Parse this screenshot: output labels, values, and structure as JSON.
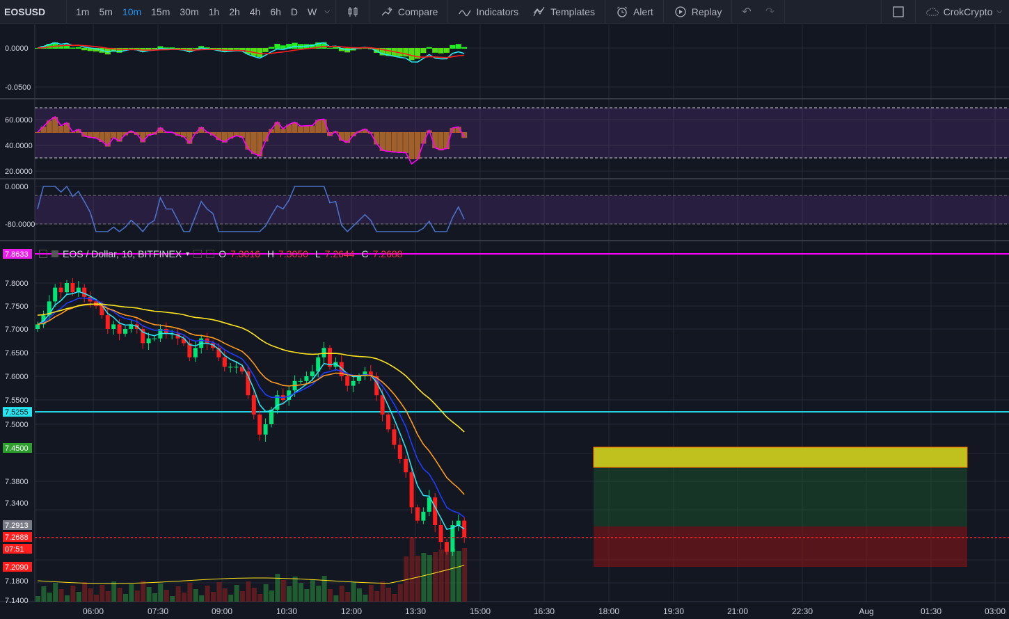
{
  "toolbar": {
    "symbol": "EOSUSD",
    "timeframes": [
      "1m",
      "5m",
      "10m",
      "15m",
      "30m",
      "1h",
      "2h",
      "4h",
      "6h",
      "D",
      "W"
    ],
    "active_timeframe": "10m",
    "compare_label": "Compare",
    "indicators_label": "Indicators",
    "templates_label": "Templates",
    "alert_label": "Alert",
    "replay_label": "Replay",
    "account_label": "CrokCrypto"
  },
  "legend": {
    "title": "EOS / Dollar, 10, BITFINEX",
    "o_label": "O",
    "o_value": "7.3016",
    "h_label": "H",
    "h_value": "7.3050",
    "l_label": "L",
    "l_value": "7.2644",
    "c_label": "C",
    "c_value": "7.2688"
  },
  "colors": {
    "background": "#131722",
    "grid": "#262a35",
    "up": "#00e676",
    "down": "#ff1e1e",
    "cyan": "#26e6f4",
    "blue": "#1e3cff",
    "orange": "#ff9a1e",
    "yellow": "#ffe51e",
    "magenta": "#ff00ff"
  },
  "price_axis": {
    "ticks": [
      "7.8000",
      "7.7500",
      "7.7000",
      "7.6500",
      "7.6000",
      "7.5500",
      "7.5000",
      "7.3800",
      "7.3400",
      "7.1800",
      "7.1400"
    ],
    "badges": [
      {
        "label": "7.8633",
        "color": "#e91ee9"
      },
      {
        "label": "7.5255",
        "color": "#26e6f4"
      },
      {
        "label": "7.4500",
        "color": "#2e9e2e"
      },
      {
        "label": "7.2913",
        "color": "#787b86"
      },
      {
        "label": "7.2688",
        "color": "#ff1e1e"
      },
      {
        "label": "07:51",
        "color": "#ff1e1e"
      },
      {
        "label": "7.2090",
        "color": "#ff1e1e"
      }
    ]
  },
  "pane_axes": {
    "macd": [
      "0.0000",
      "-0.0500"
    ],
    "rsi": [
      "60.0000",
      "40.0000",
      "20.0000"
    ],
    "willr": [
      "0.0000",
      "-80.0000"
    ]
  },
  "time_axis": [
    "06:00",
    "07:30",
    "09:00",
    "10:30",
    "12:00",
    "13:30",
    "15:00",
    "16:30",
    "18:00",
    "19:30",
    "21:00",
    "22:30",
    "Aug",
    "01:30",
    "03:00"
  ],
  "chart_data": {
    "type": "candlestick",
    "symbol": "EOS / Dollar, 10, BITFINEX",
    "close": [
      7.71,
      7.73,
      7.76,
      7.79,
      7.78,
      7.8,
      7.78,
      7.79,
      7.77,
      7.76,
      7.75,
      7.73,
      7.7,
      7.71,
      7.69,
      7.7,
      7.71,
      7.7,
      7.67,
      7.68,
      7.68,
      7.7,
      7.69,
      7.69,
      7.68,
      7.67,
      7.64,
      7.66,
      7.68,
      7.67,
      7.66,
      7.64,
      7.62,
      7.62,
      7.62,
      7.61,
      7.56,
      7.52,
      7.48,
      7.5,
      7.53,
      7.56,
      7.55,
      7.57,
      7.59,
      7.59,
      7.6,
      7.61,
      7.64,
      7.66,
      7.62,
      7.63,
      7.6,
      7.58,
      7.59,
      7.6,
      7.61,
      7.6,
      7.56,
      7.52,
      7.49,
      7.46,
      7.43,
      7.4,
      7.33,
      7.3,
      7.32,
      7.35,
      7.29,
      7.26,
      7.24,
      7.29,
      7.3,
      7.27
    ],
    "price_range": [
      7.14,
      7.82
    ],
    "levels": [
      7.8633,
      7.5255,
      7.45,
      7.2913,
      7.2688,
      7.209
    ],
    "indicators": [
      "MACD",
      "RSI",
      "Williams %R",
      "EMA ribbon",
      "Volume"
    ]
  }
}
